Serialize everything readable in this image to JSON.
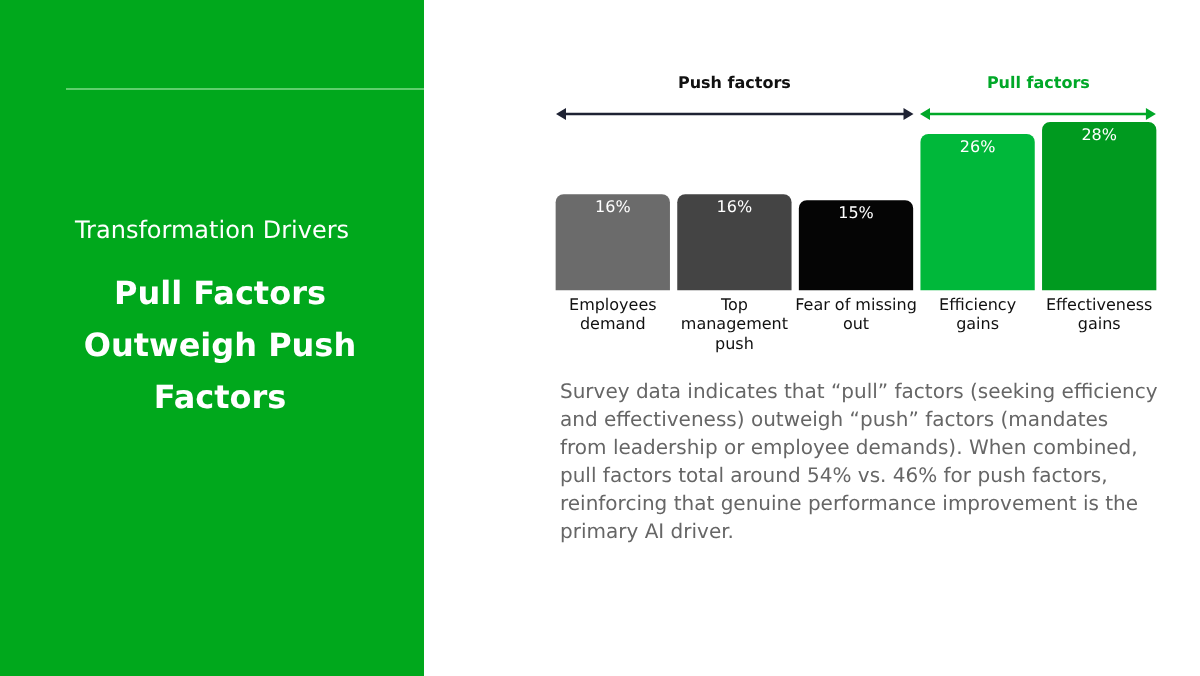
{
  "chart_data": {
    "type": "bar",
    "title": "Pull Factors Outweigh Push Factors",
    "subtitle": "Transformation Drivers",
    "categories": [
      "Employees demand",
      "Top management push",
      "Fear of missing out",
      "Efficiency gains",
      "Effectiveness gains"
    ],
    "values": [
      16,
      16,
      15,
      26,
      28
    ],
    "colors": [
      "#6b6b6b",
      "#444444",
      "#050505",
      "#00b83a",
      "#009a1f"
    ],
    "value_labels": [
      "16%",
      "16%",
      "15%",
      "26%",
      "28%"
    ],
    "annotations": [
      "Push factors",
      "Pull factors",
      "Survey data indicates that “pull” factors (seeking efficiency and effectiveness) outweigh “push” factors (mandates from leadership or employee demands). When combined, pull factors total around 54% vs. 46% for push factors, reinforcing that genuine performance improvement is the primary AI driver."
    ],
    "grid": false,
    "legend": false
  }
}
